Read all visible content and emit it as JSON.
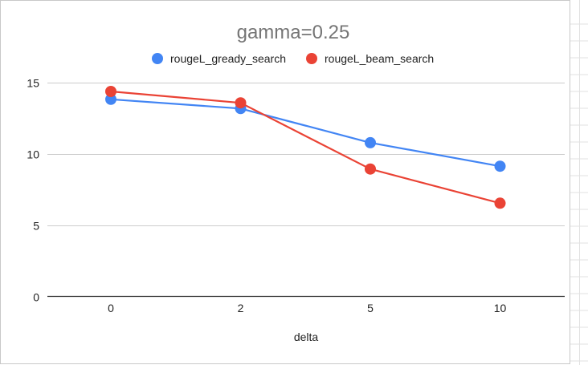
{
  "chart_data": {
    "type": "line",
    "title": "gamma=0.25",
    "xlabel": "delta",
    "ylabel": "",
    "categories": [
      "0",
      "2",
      "5",
      "10"
    ],
    "ylim": [
      0,
      17.5
    ],
    "yticks": [
      0,
      5,
      10,
      15
    ],
    "grid": true,
    "legend_position": "top",
    "series": [
      {
        "name": "rougeL_gready_search",
        "color": "#4285f4",
        "values": [
          13.85,
          13.2,
          10.8,
          9.15
        ]
      },
      {
        "name": "rougeL_beam_search",
        "color": "#ea4335",
        "values": [
          14.4,
          13.6,
          8.95,
          6.55
        ]
      }
    ]
  }
}
